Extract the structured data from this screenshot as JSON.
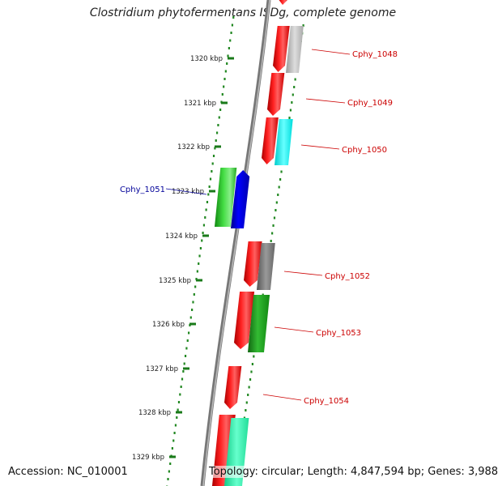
{
  "title": "Clostridium phytofermentans ISDg, complete genome",
  "footer": {
    "accession": "Accession: NC_010001",
    "summary": "Topology: circular; Length: 4,847,594 bp; Genes: 3,988"
  },
  "ticks": [
    "1320 kbp",
    "1321 kbp",
    "1322 kbp",
    "1323 kbp",
    "1324 kbp",
    "1325 kbp",
    "1326 kbp",
    "1327 kbp",
    "1328 kbp",
    "1329 kbp"
  ],
  "gene_labels": [
    {
      "id": "g1048",
      "text": "Cphy_1048",
      "color": "#cc0000"
    },
    {
      "id": "g1049",
      "text": "Cphy_1049",
      "color": "#cc0000"
    },
    {
      "id": "g1050",
      "text": "Cphy_1050",
      "color": "#cc0000"
    },
    {
      "id": "g1051",
      "text": "Cphy_1051",
      "color": "#000099"
    },
    {
      "id": "g1052",
      "text": "Cphy_1052",
      "color": "#cc0000"
    },
    {
      "id": "g1053",
      "text": "Cphy_1053",
      "color": "#cc0000"
    },
    {
      "id": "g1054",
      "text": "Cphy_1054",
      "color": "#cc0000"
    }
  ],
  "colors": {
    "red": "#ff0000",
    "blue": "#0000ee",
    "green": "#33cc33",
    "cyan": "#00ffff",
    "grey": "#b0b0b0",
    "darkgrey": "#707070",
    "aqua": "#22ffaa",
    "tick": "#228822"
  }
}
